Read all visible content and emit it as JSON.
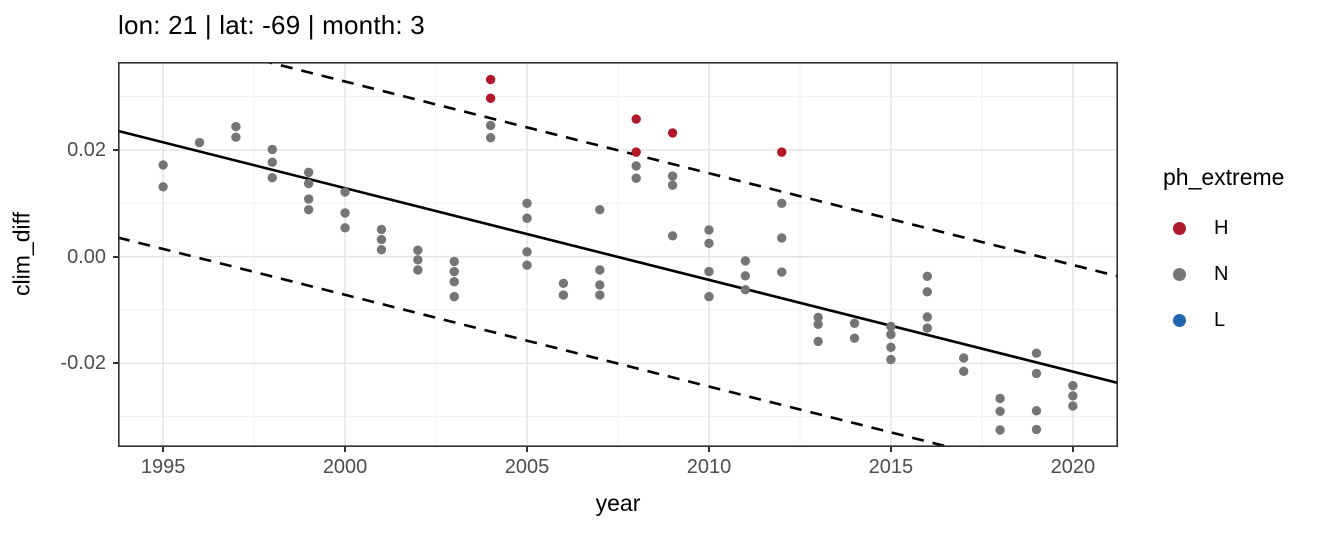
{
  "title": "lon: 21 | lat: -69 | month: 3",
  "legend": {
    "title": "ph_extreme",
    "items": [
      {
        "label": "H",
        "color": "#B2182B"
      },
      {
        "label": "N",
        "color": "#757575"
      },
      {
        "label": "L",
        "color": "#2166AC"
      }
    ]
  },
  "chart_data": {
    "type": "scatter",
    "title": "lon: 21 | lat: -69 | month: 3",
    "xlabel": "year",
    "ylabel": "clim_diff",
    "legend_title": "ph_extreme",
    "legend_position": "right",
    "grid": true,
    "xlim": [
      1993.76,
      2021.24
    ],
    "ylim": [
      -0.0357,
      0.0365
    ],
    "x_major_ticks": [
      1995,
      2000,
      2005,
      2010,
      2015,
      2020
    ],
    "x_tick_labels": [
      "1995",
      "2000",
      "2005",
      "2010",
      "2015",
      "2020"
    ],
    "x_minor_ticks": [
      1997.5,
      2002.5,
      2007.5,
      2012.5,
      2017.5
    ],
    "y_major_ticks": [
      0.02,
      0.0,
      -0.02
    ],
    "y_tick_labels": [
      "0.02",
      "0.00",
      "-0.02"
    ],
    "y_minor_ticks": [
      0.03,
      0.01,
      -0.01,
      -0.03
    ],
    "style": {
      "panel_background": "#FFFFFF",
      "panel_border": "#2E2E2E",
      "grid_major": "#E4E4E4",
      "grid_minor": "#F1F1F1",
      "tick_label_color": "#4D4D4D",
      "line_color": "#000000",
      "point_radius": 4.7
    },
    "trend_line": {
      "style": "solid",
      "slope_per_year": -0.00172,
      "value_at_2007": 0.0008
    },
    "interval_lines": {
      "style": "dashed",
      "offset_from_trend": 0.02
    },
    "series": [
      {
        "name": "N",
        "color": "#757575",
        "points": [
          [
            1995,
            0.0172
          ],
          [
            1995,
            0.0131
          ],
          [
            1996,
            0.0214
          ],
          [
            1997,
            0.0244
          ],
          [
            1997,
            0.0224
          ],
          [
            1998,
            0.0201
          ],
          [
            1998,
            0.0177
          ],
          [
            1998,
            0.0148
          ],
          [
            1999,
            0.0158
          ],
          [
            1999,
            0.0137
          ],
          [
            1999,
            0.0108
          ],
          [
            1999,
            0.0088
          ],
          [
            2000,
            0.0121
          ],
          [
            2000,
            0.0082
          ],
          [
            2000,
            0.0054
          ],
          [
            2001,
            0.0051
          ],
          [
            2001,
            0.0032
          ],
          [
            2001,
            0.0013
          ],
          [
            2002,
            0.0012
          ],
          [
            2002,
            -0.0006
          ],
          [
            2002,
            -0.0025
          ],
          [
            2003,
            -0.0009
          ],
          [
            2003,
            -0.0028
          ],
          [
            2003,
            -0.0047
          ],
          [
            2003,
            -0.0075
          ],
          [
            2004,
            0.0246
          ],
          [
            2004,
            0.0223
          ],
          [
            2005,
            0.01
          ],
          [
            2005,
            0.0072
          ],
          [
            2005,
            0.0009
          ],
          [
            2005,
            -0.0016
          ],
          [
            2006,
            -0.005
          ],
          [
            2006,
            -0.0072
          ],
          [
            2007,
            0.0088
          ],
          [
            2007,
            -0.0025
          ],
          [
            2007,
            -0.0053
          ],
          [
            2007,
            -0.0072
          ],
          [
            2008,
            0.017
          ],
          [
            2008,
            0.0147
          ],
          [
            2009,
            0.0151
          ],
          [
            2009,
            0.0134
          ],
          [
            2009,
            0.0039
          ],
          [
            2010,
            0.005
          ],
          [
            2010,
            0.0025
          ],
          [
            2010,
            -0.0028
          ],
          [
            2010,
            -0.0075
          ],
          [
            2011,
            -0.0008
          ],
          [
            2011,
            -0.0036
          ],
          [
            2011,
            -0.0062
          ],
          [
            2012,
            0.01
          ],
          [
            2012,
            0.0035
          ],
          [
            2012,
            -0.0029
          ],
          [
            2013,
            -0.0114
          ],
          [
            2013,
            -0.0127
          ],
          [
            2013,
            -0.0159
          ],
          [
            2014,
            -0.0125
          ],
          [
            2014,
            -0.0153
          ],
          [
            2015,
            -0.0131
          ],
          [
            2015,
            -0.0146
          ],
          [
            2015,
            -0.017
          ],
          [
            2015,
            -0.0193
          ],
          [
            2016,
            -0.0037
          ],
          [
            2016,
            -0.0066
          ],
          [
            2016,
            -0.0113
          ],
          [
            2016,
            -0.0134
          ],
          [
            2017,
            -0.019
          ],
          [
            2017,
            -0.0215
          ],
          [
            2018,
            -0.0266
          ],
          [
            2018,
            -0.029
          ],
          [
            2018,
            -0.0325
          ],
          [
            2019,
            -0.0181
          ],
          [
            2019,
            -0.0219
          ],
          [
            2019,
            -0.0289
          ],
          [
            2019,
            -0.0324
          ],
          [
            2020,
            -0.0242
          ],
          [
            2020,
            -0.0261
          ],
          [
            2020,
            -0.028
          ]
        ]
      },
      {
        "name": "H",
        "color": "#B2182B",
        "points": [
          [
            2004,
            0.0332
          ],
          [
            2004,
            0.0297
          ],
          [
            2008,
            0.0258
          ],
          [
            2008,
            0.0196
          ],
          [
            2009,
            0.0232
          ],
          [
            2012,
            0.0196
          ]
        ]
      },
      {
        "name": "L",
        "color": "#2166AC",
        "points": []
      }
    ]
  }
}
